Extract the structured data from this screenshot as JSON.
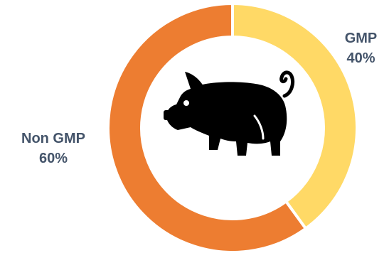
{
  "chart_data": {
    "type": "pie",
    "variant": "donut",
    "categories": [
      "GMP",
      "Non GMP"
    ],
    "values": [
      40,
      60
    ],
    "value_labels": [
      "40%",
      "60%"
    ],
    "colors": [
      "#ffd966",
      "#ed7d31"
    ],
    "title": "",
    "label_color": "#44546a",
    "center_icon": "pig-icon",
    "center_icon_color": "#000000"
  }
}
